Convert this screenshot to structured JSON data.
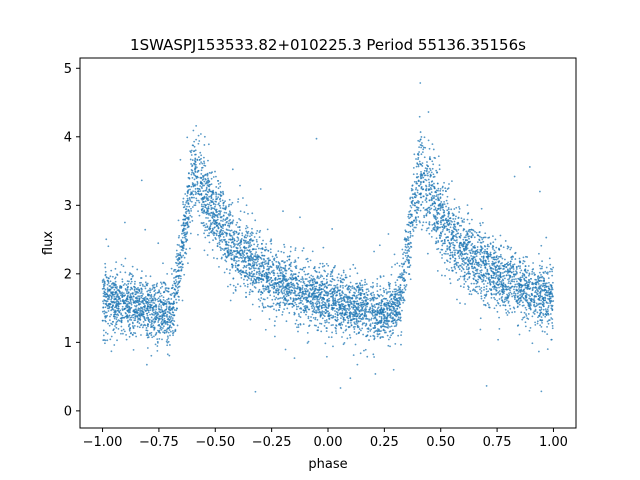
{
  "chart_data": {
    "type": "scatter",
    "title": "1SWASPJ153533.82+010225.3 Period 55136.35156s",
    "xlabel": "phase",
    "ylabel": "flux",
    "xlim": [
      -1.1,
      1.1
    ],
    "ylim": [
      -0.25,
      5.15
    ],
    "x_ticks": [
      -1.0,
      -0.75,
      -0.5,
      -0.25,
      0.0,
      0.25,
      0.5,
      0.75,
      1.0
    ],
    "x_tick_labels": [
      "−1.00",
      "−0.75",
      "−0.50",
      "−0.25",
      "0.00",
      "0.25",
      "0.50",
      "0.75",
      "1.00"
    ],
    "y_ticks": [
      0,
      1,
      2,
      3,
      4,
      5
    ],
    "y_tick_labels": [
      "0",
      "1",
      "2",
      "3",
      "4",
      "5"
    ],
    "grid": false,
    "point_color": "#1f77b4",
    "series": [
      {
        "x": [
          -1.0,
          -0.95,
          -0.9,
          -0.85,
          -0.8,
          -0.75,
          -0.7,
          -0.68,
          -0.65,
          -0.62,
          -0.6,
          -0.58,
          -0.55,
          -0.5,
          -0.45,
          -0.4,
          -0.35,
          -0.3,
          -0.25,
          -0.2,
          -0.15,
          -0.1,
          -0.05,
          0.0,
          0.05,
          0.1,
          0.15,
          0.2,
          0.25,
          0.3,
          0.32,
          0.35,
          0.38,
          0.4,
          0.42,
          0.45,
          0.5,
          0.55,
          0.6,
          0.65,
          0.7,
          0.75,
          0.8,
          0.85,
          0.9,
          0.95,
          1.0
        ],
        "y": [
          1.65,
          1.6,
          1.56,
          1.52,
          1.48,
          1.44,
          1.42,
          1.6,
          2.3,
          3.0,
          3.4,
          3.45,
          3.15,
          2.85,
          2.55,
          2.35,
          2.2,
          2.05,
          1.95,
          1.85,
          1.78,
          1.72,
          1.67,
          1.62,
          1.57,
          1.52,
          1.48,
          1.44,
          1.42,
          1.5,
          1.65,
          2.3,
          3.0,
          3.35,
          3.45,
          3.2,
          2.85,
          2.55,
          2.35,
          2.2,
          2.05,
          1.95,
          1.88,
          1.8,
          1.74,
          1.68,
          1.62
        ]
      }
    ]
  }
}
